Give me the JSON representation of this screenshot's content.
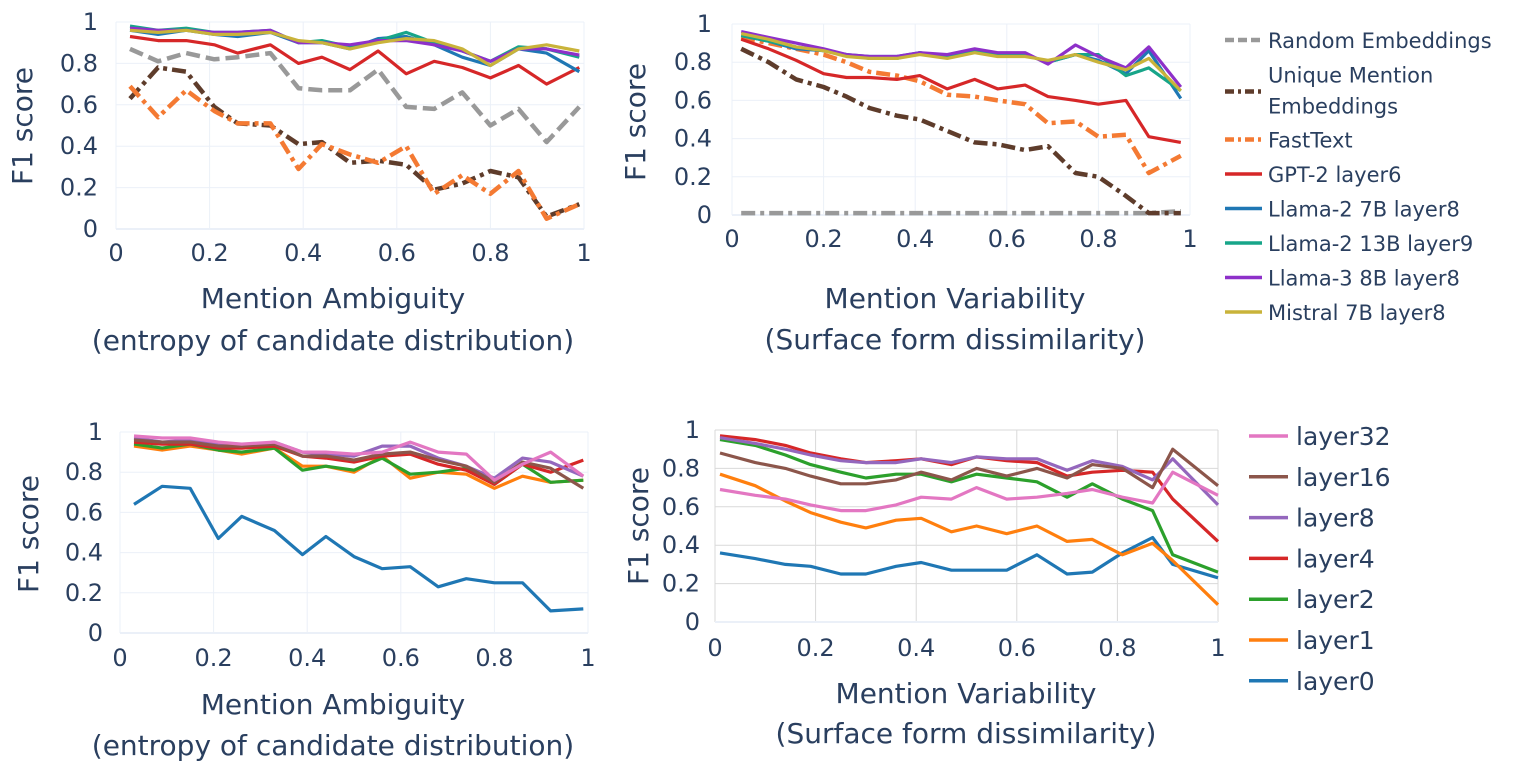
{
  "chart_data": [
    {
      "type": "line",
      "panel": "top-left",
      "xlabel": [
        "Mention Ambiguity",
        "(entropy of candidate distribution)"
      ],
      "ylabel": "F1 score",
      "xlim": [
        0,
        1
      ],
      "ylim": [
        0,
        1
      ],
      "xticks": [
        "0",
        "0.2",
        "0.4",
        "0.6",
        "0.8",
        "1"
      ],
      "yticks": [
        "0",
        "0.2",
        "0.4",
        "0.6",
        "0.8",
        "1"
      ],
      "x": [
        0.03,
        0.09,
        0.15,
        0.21,
        0.26,
        0.33,
        0.39,
        0.44,
        0.5,
        0.56,
        0.62,
        0.68,
        0.74,
        0.8,
        0.86,
        0.92,
        0.99
      ],
      "series": [
        {
          "name": "Random Embeddings",
          "color": "#999999",
          "dash": "dash",
          "values": [
            0.87,
            0.81,
            0.85,
            0.82,
            0.83,
            0.85,
            0.68,
            0.67,
            0.67,
            0.77,
            0.59,
            0.58,
            0.66,
            0.5,
            0.58,
            0.42,
            0.59
          ]
        },
        {
          "name": "Unique Mention Embeddings",
          "color": "#5e3c2b",
          "dash": "dashdot",
          "values": [
            0.63,
            0.78,
            0.76,
            0.59,
            0.51,
            0.5,
            0.41,
            0.42,
            0.32,
            0.33,
            0.31,
            0.19,
            0.22,
            0.28,
            0.25,
            0.06,
            0.12
          ]
        },
        {
          "name": "FastText",
          "color": "#f47a33",
          "dash": "dashdot",
          "values": [
            0.69,
            0.54,
            0.67,
            0.57,
            0.51,
            0.51,
            0.29,
            0.41,
            0.36,
            0.32,
            0.4,
            0.17,
            0.26,
            0.17,
            0.28,
            0.05,
            0.12
          ]
        },
        {
          "name": "GPT-2 layer6",
          "color": "#d62728",
          "dash": "solid",
          "values": [
            0.93,
            0.91,
            0.91,
            0.89,
            0.85,
            0.89,
            0.8,
            0.83,
            0.77,
            0.86,
            0.75,
            0.81,
            0.78,
            0.73,
            0.79,
            0.7,
            0.78
          ]
        },
        {
          "name": "Llama-2 7B layer8",
          "color": "#1f77b4",
          "dash": "solid",
          "values": [
            0.96,
            0.94,
            0.96,
            0.94,
            0.93,
            0.95,
            0.9,
            0.9,
            0.87,
            0.92,
            0.93,
            0.89,
            0.83,
            0.79,
            0.87,
            0.85,
            0.76
          ]
        },
        {
          "name": "Llama-2 13B layer9",
          "color": "#17a589",
          "dash": "solid",
          "values": [
            0.98,
            0.96,
            0.97,
            0.95,
            0.95,
            0.96,
            0.9,
            0.91,
            0.88,
            0.91,
            0.95,
            0.9,
            0.86,
            0.81,
            0.88,
            0.87,
            0.83
          ]
        },
        {
          "name": "Llama-3 8B layer8",
          "color": "#8e30c9",
          "dash": "solid",
          "values": [
            0.97,
            0.96,
            0.96,
            0.95,
            0.95,
            0.96,
            0.9,
            0.9,
            0.89,
            0.91,
            0.91,
            0.89,
            0.86,
            0.81,
            0.87,
            0.87,
            0.84
          ]
        },
        {
          "name": "Mistral 7B layer8",
          "color": "#c9b33a",
          "dash": "solid",
          "values": [
            0.96,
            0.95,
            0.96,
            0.94,
            0.94,
            0.95,
            0.91,
            0.9,
            0.87,
            0.9,
            0.92,
            0.91,
            0.87,
            0.79,
            0.87,
            0.89,
            0.86
          ]
        }
      ]
    },
    {
      "type": "line",
      "panel": "top-right",
      "xlabel": [
        "Mention Variability",
        "(Surface form dissimilarity)"
      ],
      "ylabel": "F1 score",
      "xlim": [
        0,
        1
      ],
      "ylim": [
        0,
        1
      ],
      "xticks": [
        "0",
        "0.2",
        "0.4",
        "0.6",
        "0.8",
        "1"
      ],
      "yticks": [
        "0",
        "0.2",
        "0.4",
        "0.6",
        "0.8",
        "1"
      ],
      "x": [
        0.02,
        0.08,
        0.14,
        0.2,
        0.25,
        0.3,
        0.36,
        0.41,
        0.47,
        0.53,
        0.58,
        0.64,
        0.69,
        0.75,
        0.8,
        0.86,
        0.91,
        0.98
      ],
      "series": [
        {
          "name": "Random Embeddings",
          "color": "#999999",
          "dash": "dashdot",
          "values": [
            0.01,
            0.01,
            0.01,
            0.01,
            0.01,
            0.01,
            0.01,
            0.01,
            0.01,
            0.01,
            0.01,
            0.01,
            0.01,
            0.01,
            0.01,
            0.01,
            0.01,
            0.02
          ]
        },
        {
          "name": "Unique Mention Embeddings",
          "color": "#5e3c2b",
          "dash": "dashdot",
          "values": [
            0.87,
            0.8,
            0.71,
            0.67,
            0.62,
            0.56,
            0.52,
            0.5,
            0.44,
            0.38,
            0.37,
            0.34,
            0.36,
            0.22,
            0.2,
            0.1,
            0.01,
            0.01
          ]
        },
        {
          "name": "FastText",
          "color": "#f47a33",
          "dash": "dashdot",
          "values": [
            0.93,
            0.9,
            0.87,
            0.84,
            0.8,
            0.75,
            0.73,
            0.7,
            0.63,
            0.62,
            0.6,
            0.58,
            0.48,
            0.49,
            0.41,
            0.42,
            0.22,
            0.31
          ]
        },
        {
          "name": "GPT-2 layer6",
          "color": "#d62728",
          "dash": "solid",
          "values": [
            0.92,
            0.87,
            0.81,
            0.74,
            0.72,
            0.72,
            0.71,
            0.73,
            0.66,
            0.71,
            0.66,
            0.68,
            0.62,
            0.6,
            0.58,
            0.6,
            0.41,
            0.38
          ]
        },
        {
          "name": "Llama-2 7B layer8",
          "color": "#1f77b4",
          "dash": "solid",
          "values": [
            0.94,
            0.91,
            0.87,
            0.86,
            0.84,
            0.83,
            0.83,
            0.85,
            0.83,
            0.86,
            0.84,
            0.84,
            0.8,
            0.84,
            0.81,
            0.74,
            0.86,
            0.61
          ]
        },
        {
          "name": "Llama-2 13B layer9",
          "color": "#17a589",
          "dash": "solid",
          "values": [
            0.94,
            0.91,
            0.88,
            0.86,
            0.84,
            0.82,
            0.82,
            0.85,
            0.83,
            0.86,
            0.84,
            0.84,
            0.8,
            0.84,
            0.84,
            0.73,
            0.77,
            0.65
          ]
        },
        {
          "name": "Llama-3 8B layer8",
          "color": "#8e30c9",
          "dash": "solid",
          "values": [
            0.96,
            0.93,
            0.9,
            0.87,
            0.84,
            0.83,
            0.83,
            0.85,
            0.84,
            0.87,
            0.85,
            0.85,
            0.79,
            0.89,
            0.83,
            0.77,
            0.88,
            0.67
          ]
        },
        {
          "name": "Mistral 7B layer8",
          "color": "#c9b33a",
          "dash": "solid",
          "values": [
            0.95,
            0.92,
            0.88,
            0.86,
            0.83,
            0.82,
            0.82,
            0.84,
            0.82,
            0.85,
            0.83,
            0.83,
            0.81,
            0.84,
            0.8,
            0.76,
            0.82,
            0.65
          ]
        }
      ]
    },
    {
      "type": "line",
      "panel": "bottom-left",
      "xlabel": [
        "Mention Ambiguity",
        "(entropy of candidate distribution)"
      ],
      "ylabel": "F1 score",
      "xlim": [
        0,
        1
      ],
      "ylim": [
        0,
        1
      ],
      "xticks": [
        "0",
        "0.2",
        "0.4",
        "0.6",
        "0.8",
        "1"
      ],
      "yticks": [
        "0",
        "0.2",
        "0.4",
        "0.6",
        "0.8",
        "1"
      ],
      "x": [
        0.03,
        0.09,
        0.15,
        0.21,
        0.26,
        0.33,
        0.39,
        0.44,
        0.5,
        0.56,
        0.62,
        0.68,
        0.74,
        0.8,
        0.86,
        0.92,
        0.99
      ],
      "series": [
        {
          "name": "layer0",
          "color": "#1f77b4",
          "values": [
            0.64,
            0.73,
            0.72,
            0.47,
            0.58,
            0.51,
            0.39,
            0.48,
            0.38,
            0.32,
            0.33,
            0.23,
            0.27,
            0.25,
            0.25,
            0.11,
            0.12
          ]
        },
        {
          "name": "layer1",
          "color": "#ff7f0e",
          "values": [
            0.93,
            0.91,
            0.93,
            0.91,
            0.89,
            0.92,
            0.83,
            0.83,
            0.8,
            0.88,
            0.77,
            0.8,
            0.79,
            0.72,
            0.78,
            0.75,
            0.76
          ]
        },
        {
          "name": "layer2",
          "color": "#2ca02c",
          "values": [
            0.94,
            0.92,
            0.94,
            0.91,
            0.9,
            0.92,
            0.81,
            0.83,
            0.81,
            0.87,
            0.79,
            0.8,
            0.82,
            0.74,
            0.84,
            0.75,
            0.76
          ]
        },
        {
          "name": "layer4",
          "color": "#d62728",
          "values": [
            0.95,
            0.94,
            0.94,
            0.92,
            0.92,
            0.93,
            0.88,
            0.87,
            0.85,
            0.88,
            0.89,
            0.84,
            0.81,
            0.74,
            0.84,
            0.8,
            0.86
          ]
        },
        {
          "name": "layer8",
          "color": "#9467bd",
          "values": [
            0.97,
            0.95,
            0.96,
            0.94,
            0.93,
            0.95,
            0.9,
            0.89,
            0.88,
            0.93,
            0.93,
            0.87,
            0.83,
            0.77,
            0.87,
            0.85,
            0.78
          ]
        },
        {
          "name": "layer16",
          "color": "#8c564b",
          "values": [
            0.96,
            0.95,
            0.95,
            0.93,
            0.93,
            0.94,
            0.88,
            0.88,
            0.86,
            0.89,
            0.9,
            0.86,
            0.83,
            0.75,
            0.85,
            0.82,
            0.72
          ]
        },
        {
          "name": "layer32",
          "color": "#e377c2",
          "values": [
            0.98,
            0.97,
            0.97,
            0.95,
            0.94,
            0.95,
            0.9,
            0.9,
            0.89,
            0.9,
            0.95,
            0.9,
            0.89,
            0.76,
            0.84,
            0.9,
            0.78
          ]
        }
      ]
    },
    {
      "type": "line",
      "panel": "bottom-right",
      "xlabel": [
        "Mention Variability",
        "(Surface form dissimilarity)"
      ],
      "ylabel": "F1 score",
      "xlim": [
        0,
        1
      ],
      "ylim": [
        0,
        1
      ],
      "xticks": [
        "0",
        "0.2",
        "0.4",
        "0.6",
        "0.8",
        "1"
      ],
      "yticks": [
        "0",
        "0.2",
        "0.4",
        "0.6",
        "0.8",
        "1"
      ],
      "x": [
        0.01,
        0.08,
        0.14,
        0.19,
        0.25,
        0.3,
        0.36,
        0.41,
        0.47,
        0.52,
        0.58,
        0.64,
        0.7,
        0.75,
        0.81,
        0.87,
        0.91,
        1.0
      ],
      "series": [
        {
          "name": "layer0",
          "color": "#1f77b4",
          "values": [
            0.36,
            0.33,
            0.3,
            0.29,
            0.25,
            0.25,
            0.29,
            0.31,
            0.27,
            0.27,
            0.27,
            0.35,
            0.25,
            0.26,
            0.36,
            0.44,
            0.3,
            0.23
          ]
        },
        {
          "name": "layer1",
          "color": "#ff7f0e",
          "values": [
            0.77,
            0.71,
            0.63,
            0.57,
            0.52,
            0.49,
            0.53,
            0.54,
            0.47,
            0.5,
            0.46,
            0.5,
            0.42,
            0.43,
            0.35,
            0.41,
            0.32,
            0.09
          ]
        },
        {
          "name": "layer2",
          "color": "#2ca02c",
          "values": [
            0.95,
            0.92,
            0.87,
            0.82,
            0.78,
            0.75,
            0.77,
            0.77,
            0.73,
            0.77,
            0.75,
            0.73,
            0.65,
            0.72,
            0.64,
            0.58,
            0.35,
            0.26
          ]
        },
        {
          "name": "layer4",
          "color": "#d62728",
          "values": [
            0.97,
            0.95,
            0.92,
            0.88,
            0.85,
            0.83,
            0.84,
            0.85,
            0.82,
            0.86,
            0.84,
            0.83,
            0.76,
            0.78,
            0.79,
            0.78,
            0.64,
            0.42
          ]
        },
        {
          "name": "layer8",
          "color": "#9467bd",
          "values": [
            0.96,
            0.93,
            0.9,
            0.87,
            0.84,
            0.83,
            0.83,
            0.85,
            0.83,
            0.86,
            0.85,
            0.85,
            0.79,
            0.84,
            0.81,
            0.74,
            0.85,
            0.61
          ]
        },
        {
          "name": "layer16",
          "color": "#8c564b",
          "values": [
            0.88,
            0.83,
            0.8,
            0.76,
            0.72,
            0.72,
            0.74,
            0.78,
            0.74,
            0.8,
            0.76,
            0.8,
            0.75,
            0.82,
            0.8,
            0.7,
            0.9,
            0.71
          ]
        },
        {
          "name": "layer32",
          "color": "#e377c2",
          "values": [
            0.69,
            0.66,
            0.64,
            0.61,
            0.58,
            0.58,
            0.61,
            0.65,
            0.64,
            0.7,
            0.64,
            0.65,
            0.67,
            0.69,
            0.65,
            0.62,
            0.78,
            0.66
          ]
        }
      ]
    }
  ],
  "legend_top": [
    "Random Embeddings",
    "Unique Mention|Embeddings",
    "FastText",
    "GPT-2 layer6",
    "Llama-2 7B layer8",
    "Llama-2 13B layer9",
    "Llama-3 8B layer8",
    "Mistral 7B layer8"
  ],
  "legend_bottom": [
    "layer32",
    "layer16",
    "layer8",
    "layer4",
    "layer2",
    "layer1",
    "layer0"
  ]
}
